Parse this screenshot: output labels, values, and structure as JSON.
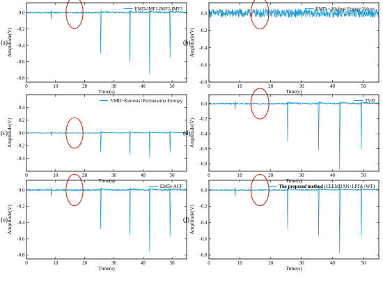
{
  "chart_data": [
    {
      "type": "line",
      "panel_label": "(a)",
      "legend": "EMD-IMF1-IMF2-IMF3",
      "xlabel": "Time(s)",
      "ylabel": "Amplitude(V)",
      "xlim": [
        0,
        55
      ],
      "ylim": [
        -0.85,
        0.12
      ],
      "xticks": [
        0,
        10,
        20,
        30,
        40,
        50
      ],
      "yticks": [
        0.0,
        -0.2,
        -0.4,
        -0.6,
        -0.8
      ],
      "baseline": 0.0,
      "noise": 0.01,
      "spikes": [
        {
          "x": 8.5,
          "y": -0.08
        },
        {
          "x": 25.5,
          "y": -0.5
        },
        {
          "x": 35.5,
          "y": -0.6
        },
        {
          "x": 42.3,
          "y": -0.75
        },
        {
          "x": 49.3,
          "y": -0.55
        }
      ],
      "circle_center": [
        16.5,
        0.0
      ],
      "color": "#1f9ad6"
    },
    {
      "type": "line",
      "panel_label": "(b)",
      "legend": "EMD + Highest Energy Values",
      "xlabel": "Time(s)",
      "ylabel": "Amplitude(V)",
      "xlim": [
        0,
        55
      ],
      "ylim": [
        -0.8,
        0.12
      ],
      "xticks": [
        0,
        10,
        20,
        30,
        40,
        50
      ],
      "yticks": [
        0.0,
        -0.2,
        -0.4,
        -0.6,
        -0.8
      ],
      "baseline": 0.0,
      "noise": 0.05,
      "spikes": [],
      "circle_center": [
        16.5,
        0.0
      ],
      "color": "#1f9ad6"
    },
    {
      "type": "line",
      "panel_label": "(c)",
      "legend": "VMD+Kurtosis+Permutation Entropy",
      "xlabel": "Time(s)",
      "ylabel": "Amplitude(V)",
      "xlim": [
        0,
        55
      ],
      "ylim": [
        -0.6,
        0.6
      ],
      "xticks": [
        0,
        10,
        20,
        30,
        40,
        50
      ],
      "yticks": [
        0.4,
        0.2,
        0.0,
        -0.2,
        -0.4
      ],
      "baseline": 0.0,
      "noise": 0.006,
      "spikes": [
        {
          "x": 8.5,
          "y": -0.04
        },
        {
          "x": 25.5,
          "y": -0.3
        },
        {
          "x": 35.5,
          "y": -0.33
        },
        {
          "x": 42.3,
          "y": -0.38
        },
        {
          "x": 49.3,
          "y": -0.3
        }
      ],
      "circle_center": [
        16.5,
        0.0
      ],
      "color": "#1f9ad6"
    },
    {
      "type": "line",
      "panel_label": "(d)",
      "legend": "TVD",
      "xlabel": "Time(s)",
      "ylabel": "Amplitude(V)",
      "xlim": [
        0,
        55
      ],
      "ylim": [
        -0.9,
        0.12
      ],
      "xticks": [
        0,
        10,
        20,
        30,
        40,
        50
      ],
      "yticks": [
        0.0,
        -0.2,
        -0.4,
        -0.6,
        -0.8
      ],
      "baseline": 0.0,
      "noise": 0.01,
      "spikes": [
        {
          "x": 8.5,
          "y": -0.08
        },
        {
          "x": 25.5,
          "y": -0.5
        },
        {
          "x": 35.5,
          "y": -0.62
        },
        {
          "x": 42.3,
          "y": -0.88
        },
        {
          "x": 49.3,
          "y": -0.6
        }
      ],
      "circle_center": [
        16.5,
        0.0
      ],
      "color": "#1f9ad6"
    },
    {
      "type": "line",
      "panel_label": "(e)",
      "legend": "EMD+ACF",
      "xlabel": "Time(s)",
      "ylabel": "Amplitude(V)",
      "xlim": [
        0,
        55
      ],
      "ylim": [
        -0.85,
        0.12
      ],
      "xticks": [
        0,
        10,
        20,
        30,
        40,
        50
      ],
      "yticks": [
        0.0,
        -0.2,
        -0.4,
        -0.6,
        -0.8
      ],
      "baseline": 0.0,
      "noise": 0.01,
      "spikes": [
        {
          "x": 8.5,
          "y": -0.08
        },
        {
          "x": 25.5,
          "y": -0.48
        },
        {
          "x": 35.5,
          "y": -0.55
        },
        {
          "x": 42.3,
          "y": -0.76
        },
        {
          "x": 49.3,
          "y": -0.57
        }
      ],
      "circle_center": [
        16.5,
        0.0
      ],
      "color": "#1f9ad6"
    },
    {
      "type": "line",
      "panel_label": "(f)",
      "legend": "The proposed method",
      "legend_suffix": " (CEEMDAN+LPFA+WT)",
      "xlabel": "Time(s)",
      "ylabel": "Amplitude(V)",
      "xlim": [
        0,
        55
      ],
      "ylim": [
        -0.85,
        0.12
      ],
      "xticks": [
        0,
        10,
        20,
        30,
        40,
        50
      ],
      "yticks": [
        0.0,
        -0.2,
        -0.4,
        -0.6,
        -0.8
      ],
      "baseline": 0.0,
      "noise": 0.008,
      "spikes": [
        {
          "x": 8.5,
          "y": -0.08
        },
        {
          "x": 25.5,
          "y": -0.48
        },
        {
          "x": 35.5,
          "y": -0.57
        },
        {
          "x": 42.3,
          "y": -0.78
        },
        {
          "x": 49.3,
          "y": -0.57
        }
      ],
      "circle_center": [
        16.5,
        0.0
      ],
      "color": "#1f9ad6"
    }
  ]
}
